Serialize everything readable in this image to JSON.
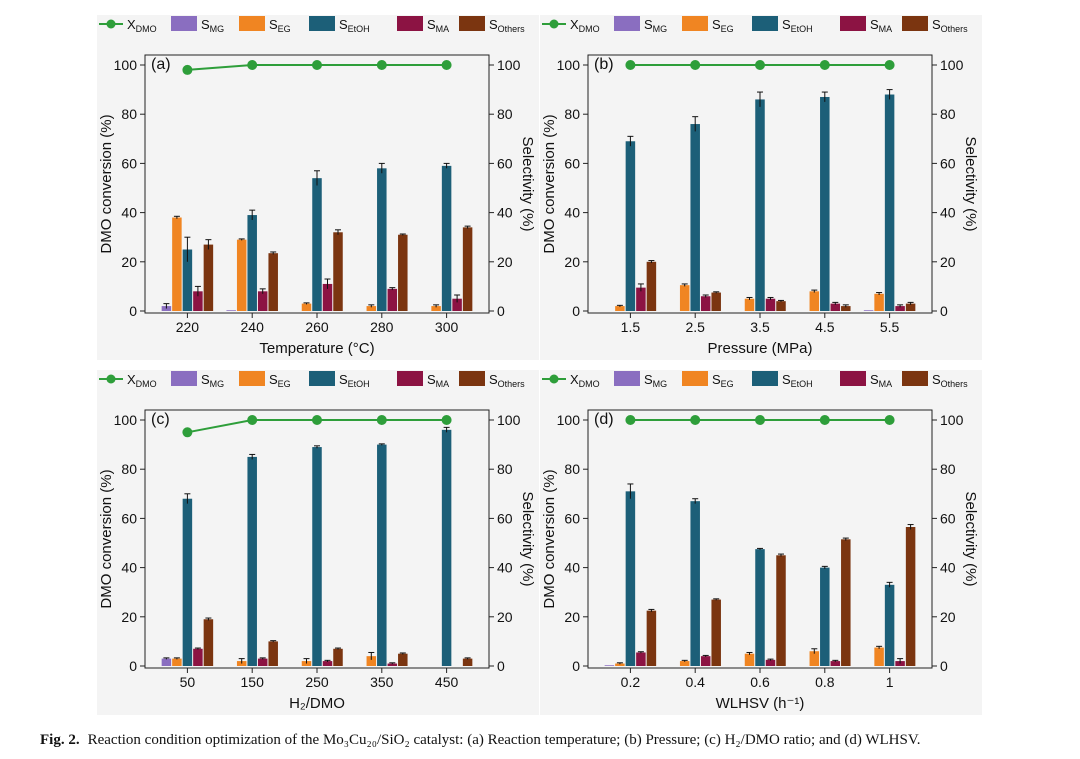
{
  "legend": [
    {
      "key": "xdmo",
      "main": "X",
      "sub": "DMO",
      "kind": "line",
      "color": "#2e9e3a"
    },
    {
      "key": "smg",
      "main": "S",
      "sub": "MG",
      "kind": "box",
      "color": "#8a6ec0"
    },
    {
      "key": "seg",
      "main": "S",
      "sub": "EG",
      "kind": "box",
      "color": "#f08522"
    },
    {
      "key": "setoh",
      "main": "S",
      "sub": "EtOH",
      "kind": "box",
      "color": "#1c5f78"
    },
    {
      "key": "sma",
      "main": "S",
      "sub": "MA",
      "kind": "box",
      "color": "#8c1343"
    },
    {
      "key": "sothers",
      "main": "S",
      "sub": "Others",
      "kind": "box",
      "color": "#7b3510"
    }
  ],
  "caption": {
    "label": "Fig. 2.",
    "text": "Reaction condition optimization of the Mo₃Cu₂₀/SiO₂ catalyst: (a) Reaction temperature; (b) Pressure; (c) H₂/DMO ratio; and (d) WLHSV."
  },
  "chart_data": [
    {
      "id": "a",
      "panel_label": "(a)",
      "type": "bar",
      "title": "",
      "xlabel": "Temperature (°C)",
      "ylabel_left": "DMO conversion (%)",
      "ylabel_right": "Selectivity (%)",
      "ylim": [
        0,
        100
      ],
      "yticks": [
        0,
        20,
        40,
        60,
        80,
        100
      ],
      "categories": [
        "220",
        "240",
        "260",
        "280",
        "300"
      ],
      "conversion": {
        "name": "XDMO",
        "values": [
          98,
          100,
          100,
          100,
          100
        ]
      },
      "series": [
        {
          "name": "SMG",
          "values": [
            2,
            0.3,
            0,
            0,
            0
          ],
          "errors": [
            1,
            0,
            0,
            0,
            0
          ]
        },
        {
          "name": "SEG",
          "values": [
            38,
            29,
            3,
            2,
            2
          ],
          "errors": [
            0.5,
            0.3,
            0.3,
            0.5,
            0.5
          ]
        },
        {
          "name": "SEtOH",
          "values": [
            25,
            39,
            54,
            58,
            59
          ],
          "errors": [
            5,
            2,
            3,
            2,
            1
          ]
        },
        {
          "name": "SMA",
          "values": [
            8,
            8,
            11,
            9,
            5
          ],
          "errors": [
            2,
            1,
            2,
            0.5,
            1.5
          ]
        },
        {
          "name": "SOthers",
          "values": [
            27,
            23.5,
            32,
            31,
            34
          ],
          "errors": [
            2,
            0.5,
            1,
            0.3,
            0.5
          ]
        }
      ]
    },
    {
      "id": "b",
      "panel_label": "(b)",
      "type": "bar",
      "title": "",
      "xlabel": "Pressure (MPa)",
      "ylabel_left": "DMO conversion (%)",
      "ylabel_right": "Selectivity (%)",
      "ylim": [
        0,
        100
      ],
      "yticks": [
        0,
        20,
        40,
        60,
        80,
        100
      ],
      "categories": [
        "1.5",
        "2.5",
        "3.5",
        "4.5",
        "5.5"
      ],
      "conversion": {
        "name": "XDMO",
        "values": [
          100,
          100,
          100,
          100,
          100
        ]
      },
      "series": [
        {
          "name": "SMG",
          "values": [
            0,
            0,
            0,
            0,
            0.3
          ],
          "errors": [
            0,
            0,
            0,
            0,
            0
          ]
        },
        {
          "name": "SEG",
          "values": [
            2,
            10.5,
            5,
            8,
            7
          ],
          "errors": [
            0.3,
            0.5,
            0.5,
            0.5,
            0.5
          ]
        },
        {
          "name": "SEtOH",
          "values": [
            69,
            76,
            86,
            87,
            88
          ],
          "errors": [
            2,
            3,
            3,
            2,
            2
          ]
        },
        {
          "name": "SMA",
          "values": [
            9.5,
            6,
            5,
            3,
            2
          ],
          "errors": [
            1.5,
            0.5,
            0.5,
            0.5,
            0.5
          ]
        },
        {
          "name": "SOthers",
          "values": [
            20,
            7.5,
            4,
            2,
            3
          ],
          "errors": [
            0.5,
            0.3,
            0.3,
            0.5,
            0.5
          ]
        }
      ]
    },
    {
      "id": "c",
      "panel_label": "(c)",
      "type": "bar",
      "title": "",
      "xlabel": "H₂/DMO",
      "ylabel_left": "DMO conversion (%)",
      "ylabel_right": "Selectivity (%)",
      "ylim": [
        0,
        100
      ],
      "yticks": [
        0,
        20,
        40,
        60,
        80,
        100
      ],
      "categories": [
        "50",
        "150",
        "250",
        "350",
        "450"
      ],
      "conversion": {
        "name": "XDMO",
        "values": [
          95,
          100,
          100,
          100,
          100
        ]
      },
      "series": [
        {
          "name": "SMG",
          "values": [
            3,
            0,
            0,
            0,
            0
          ],
          "errors": [
            0.3,
            0,
            0,
            0,
            0
          ]
        },
        {
          "name": "SEG",
          "values": [
            3,
            2,
            2,
            4,
            0
          ],
          "errors": [
            0.3,
            1,
            1,
            1.5,
            0
          ]
        },
        {
          "name": "SEtOH",
          "values": [
            68,
            85,
            89,
            90,
            96
          ],
          "errors": [
            2,
            1,
            0.5,
            0.3,
            1
          ]
        },
        {
          "name": "SMA",
          "values": [
            7,
            3,
            2,
            1,
            0
          ],
          "errors": [
            0.3,
            0.3,
            0.3,
            0.3,
            0
          ]
        },
        {
          "name": "SOthers",
          "values": [
            19,
            10,
            7,
            5,
            3
          ],
          "errors": [
            0.5,
            0.3,
            0.3,
            0.3,
            0.3
          ]
        }
      ]
    },
    {
      "id": "d",
      "panel_label": "(d)",
      "type": "bar",
      "title": "",
      "xlabel": "WLHSV (h⁻¹)",
      "ylabel_left": "DMO conversion (%)",
      "ylabel_right": "Selectivity (%)",
      "ylim": [
        0,
        100
      ],
      "yticks": [
        0,
        20,
        40,
        60,
        80,
        100
      ],
      "categories": [
        "0.2",
        "0.4",
        "0.6",
        "0.8",
        "1"
      ],
      "conversion": {
        "name": "XDMO",
        "values": [
          100,
          100,
          100,
          100,
          100
        ]
      },
      "series": [
        {
          "name": "SMG",
          "values": [
            0.3,
            0,
            0,
            0,
            0
          ],
          "errors": [
            0,
            0,
            0,
            0,
            0
          ]
        },
        {
          "name": "SEG",
          "values": [
            1,
            2,
            5,
            6,
            7.5
          ],
          "errors": [
            0.3,
            0.3,
            0.5,
            1,
            0.5
          ]
        },
        {
          "name": "SEtOH",
          "values": [
            71,
            67,
            47.5,
            40,
            33
          ],
          "errors": [
            3,
            1,
            0.3,
            0.5,
            1
          ]
        },
        {
          "name": "SMA",
          "values": [
            5.5,
            4,
            2.5,
            2,
            2
          ],
          "errors": [
            0.3,
            0.3,
            0.3,
            0.3,
            1
          ]
        },
        {
          "name": "SOthers",
          "values": [
            22.5,
            27,
            45,
            51.5,
            56.5
          ],
          "errors": [
            0.5,
            0.3,
            0.5,
            0.5,
            1
          ]
        }
      ]
    }
  ]
}
